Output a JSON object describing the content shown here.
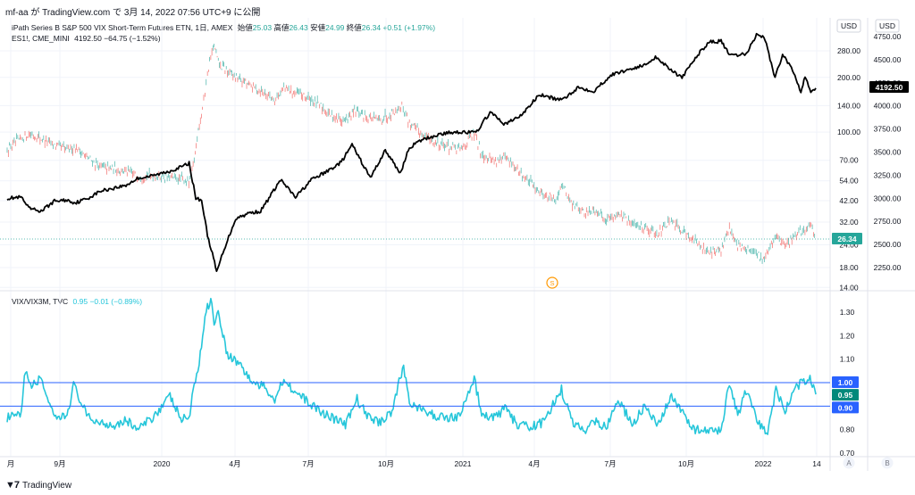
{
  "header": {
    "text": "mf-aa が TradingView.com で 3月 14, 2022 07:56 UTC+9 に公開"
  },
  "legend_top": {
    "title": "iPath Series B S&P 500 VIX Short-Term Futures ETN, 1日, AMEX",
    "open_label": "始値",
    "open": "25.03",
    "high_label": "高値",
    "high": "26.43",
    "low_label": "安値",
    "low": "24.99",
    "close_label": "終値",
    "close": "26.34",
    "change": "+0.51 (+1.97%)"
  },
  "legend_es": {
    "title": "ES1!, CME_MINI",
    "value": "4192.50",
    "change": "−64.75 (−1.52%)"
  },
  "legend_ratio": {
    "title": "VIX/VIX3M, TVC",
    "value": "0.95",
    "change": "−0.01 (−0.89%)"
  },
  "footer": {
    "brand": "TradingView"
  },
  "chart_data": {
    "type": "line",
    "x_ticks": [
      "月",
      "9月",
      "2020",
      "4月",
      "7月",
      "10月",
      "2021",
      "4月",
      "7月",
      "10月",
      "2022",
      "14"
    ],
    "currency_label": "USD",
    "left_axis": {
      "scale": "log",
      "ticks": [
        "280.00",
        "200.00",
        "140.00",
        "100.00",
        "70.00",
        "54.00",
        "42.00",
        "32.00",
        "24.00",
        "18.00",
        "14.00"
      ],
      "last_label": "26.34"
    },
    "right_axis": {
      "ticks": [
        "4750.00",
        "4500.00",
        "4250.00",
        "4000.00",
        "3750.00",
        "3500.00",
        "3250.00",
        "3000.00",
        "2750.00",
        "2500.00",
        "2250.00"
      ],
      "last_label": "4192.50"
    },
    "lower_axis": {
      "ticks": [
        "1.30",
        "1.20",
        "1.10",
        "1.00",
        "0.90",
        "0.80",
        "0.70"
      ],
      "level_labels": [
        "1.00",
        "0.95",
        "0.90"
      ],
      "levels": [
        1.0,
        0.9
      ],
      "last": 0.95
    },
    "vxx_series": [
      [
        "2019-07-15",
        80
      ],
      [
        "2019-08-01",
        92
      ],
      [
        "2019-08-10",
        98
      ],
      [
        "2019-08-25",
        92
      ],
      [
        "2019-09-10",
        85
      ],
      [
        "2019-09-25",
        80
      ],
      [
        "2019-10-05",
        83
      ],
      [
        "2019-10-20",
        72
      ],
      [
        "2019-11-05",
        64
      ],
      [
        "2019-11-20",
        63
      ],
      [
        "2019-12-05",
        61
      ],
      [
        "2019-12-20",
        57
      ],
      [
        "2020-01-05",
        58
      ],
      [
        "2020-01-25",
        56
      ],
      [
        "2020-02-10",
        55
      ],
      [
        "2020-02-20",
        53
      ],
      [
        "2020-02-25",
        70
      ],
      [
        "2020-03-01",
        105
      ],
      [
        "2020-03-06",
        135
      ],
      [
        "2020-03-12",
        210
      ],
      [
        "2020-03-16",
        260
      ],
      [
        "2020-03-20",
        300
      ],
      [
        "2020-03-25",
        240
      ],
      [
        "2020-04-05",
        215
      ],
      [
        "2020-04-20",
        195
      ],
      [
        "2020-05-05",
        178
      ],
      [
        "2020-05-20",
        165
      ],
      [
        "2020-06-01",
        152
      ],
      [
        "2020-06-12",
        175
      ],
      [
        "2020-06-25",
        165
      ],
      [
        "2020-07-10",
        155
      ],
      [
        "2020-07-25",
        140
      ],
      [
        "2020-08-10",
        122
      ],
      [
        "2020-08-25",
        115
      ],
      [
        "2020-09-05",
        130
      ],
      [
        "2020-09-20",
        122
      ],
      [
        "2020-10-05",
        116
      ],
      [
        "2020-10-20",
        128
      ],
      [
        "2020-11-01",
        140
      ],
      [
        "2020-11-10",
        112
      ],
      [
        "2020-11-25",
        98
      ],
      [
        "2020-12-10",
        88
      ],
      [
        "2020-12-25",
        84
      ],
      [
        "2021-01-10",
        80
      ],
      [
        "2021-01-27",
        98
      ],
      [
        "2021-02-05",
        76
      ],
      [
        "2021-02-20",
        70
      ],
      [
        "2021-03-05",
        72
      ],
      [
        "2021-03-20",
        62
      ],
      [
        "2021-04-05",
        52
      ],
      [
        "2021-04-20",
        46
      ],
      [
        "2021-05-05",
        42
      ],
      [
        "2021-05-12",
        52
      ],
      [
        "2021-05-25",
        40
      ],
      [
        "2021-06-10",
        36
      ],
      [
        "2021-06-20",
        38
      ],
      [
        "2021-07-05",
        33
      ],
      [
        "2021-07-20",
        36
      ],
      [
        "2021-08-05",
        31
      ],
      [
        "2021-08-20",
        30
      ],
      [
        "2021-09-05",
        28
      ],
      [
        "2021-09-20",
        32
      ],
      [
        "2021-10-05",
        29
      ],
      [
        "2021-10-20",
        25
      ],
      [
        "2021-11-05",
        22
      ],
      [
        "2021-11-20",
        22
      ],
      [
        "2021-11-30",
        30
      ],
      [
        "2021-12-10",
        24
      ],
      [
        "2021-12-25",
        22
      ],
      [
        "2022-01-10",
        20
      ],
      [
        "2022-01-25",
        27
      ],
      [
        "2022-02-05",
        24
      ],
      [
        "2022-02-20",
        27
      ],
      [
        "2022-03-01",
        29
      ],
      [
        "2022-03-07",
        31
      ],
      [
        "2022-03-14",
        26.34
      ]
    ],
    "es_series": [
      [
        "2019-07-15",
        3000
      ],
      [
        "2019-08-01",
        3010
      ],
      [
        "2019-08-10",
        2890
      ],
      [
        "2019-08-25",
        2860
      ],
      [
        "2019-09-10",
        2970
      ],
      [
        "2019-09-25",
        2980
      ],
      [
        "2019-10-05",
        2950
      ],
      [
        "2019-10-20",
        3000
      ],
      [
        "2019-11-05",
        3080
      ],
      [
        "2019-11-20",
        3110
      ],
      [
        "2019-12-05",
        3140
      ],
      [
        "2019-12-20",
        3220
      ],
      [
        "2020-01-05",
        3240
      ],
      [
        "2020-01-25",
        3290
      ],
      [
        "2020-02-10",
        3340
      ],
      [
        "2020-02-19",
        3380
      ],
      [
        "2020-02-27",
        3000
      ],
      [
        "2020-03-05",
        2980
      ],
      [
        "2020-03-12",
        2600
      ],
      [
        "2020-03-18",
        2400
      ],
      [
        "2020-03-23",
        2200
      ],
      [
        "2020-04-01",
        2450
      ],
      [
        "2020-04-15",
        2780
      ],
      [
        "2020-05-01",
        2840
      ],
      [
        "2020-05-15",
        2860
      ],
      [
        "2020-06-08",
        3200
      ],
      [
        "2020-06-26",
        3010
      ],
      [
        "2020-07-15",
        3200
      ],
      [
        "2020-08-01",
        3280
      ],
      [
        "2020-08-20",
        3390
      ],
      [
        "2020-09-02",
        3580
      ],
      [
        "2020-09-24",
        3220
      ],
      [
        "2020-10-12",
        3520
      ],
      [
        "2020-10-30",
        3270
      ],
      [
        "2020-11-10",
        3550
      ],
      [
        "2020-11-25",
        3630
      ],
      [
        "2020-12-15",
        3690
      ],
      [
        "2021-01-05",
        3720
      ],
      [
        "2021-01-29",
        3710
      ],
      [
        "2021-02-15",
        3930
      ],
      [
        "2021-03-05",
        3800
      ],
      [
        "2021-03-25",
        3900
      ],
      [
        "2021-04-15",
        4120
      ],
      [
        "2021-05-12",
        4060
      ],
      [
        "2021-06-01",
        4200
      ],
      [
        "2021-06-20",
        4160
      ],
      [
        "2021-07-10",
        4330
      ],
      [
        "2021-07-30",
        4390
      ],
      [
        "2021-08-20",
        4440
      ],
      [
        "2021-09-02",
        4530
      ],
      [
        "2021-10-04",
        4300
      ],
      [
        "2021-10-20",
        4520
      ],
      [
        "2021-11-05",
        4690
      ],
      [
        "2021-11-20",
        4700
      ],
      [
        "2021-12-01",
        4540
      ],
      [
        "2021-12-20",
        4560
      ],
      [
        "2022-01-03",
        4790
      ],
      [
        "2022-01-12",
        4720
      ],
      [
        "2022-01-24",
        4300
      ],
      [
        "2022-02-02",
        4560
      ],
      [
        "2022-02-14",
        4390
      ],
      [
        "2022-02-24",
        4150
      ],
      [
        "2022-03-01",
        4330
      ],
      [
        "2022-03-08",
        4160
      ],
      [
        "2022-03-14",
        4192.5
      ]
    ],
    "ratio_series": [
      [
        "2019-07-15",
        0.85
      ],
      [
        "2019-08-01",
        0.86
      ],
      [
        "2019-08-06",
        1.06
      ],
      [
        "2019-08-12",
        0.98
      ],
      [
        "2019-08-25",
        1.02
      ],
      [
        "2019-09-10",
        0.84
      ],
      [
        "2019-09-25",
        0.86
      ],
      [
        "2019-10-03",
        0.99
      ],
      [
        "2019-10-20",
        0.85
      ],
      [
        "2019-11-05",
        0.83
      ],
      [
        "2019-11-20",
        0.82
      ],
      [
        "2019-12-05",
        0.84
      ],
      [
        "2019-12-20",
        0.8
      ],
      [
        "2020-01-05",
        0.85
      ],
      [
        "2020-01-27",
        0.94
      ],
      [
        "2020-02-10",
        0.84
      ],
      [
        "2020-02-20",
        0.86
      ],
      [
        "2020-02-25",
        1.0
      ],
      [
        "2020-03-02",
        1.08
      ],
      [
        "2020-03-09",
        1.28
      ],
      [
        "2020-03-12",
        1.32
      ],
      [
        "2020-03-16",
        1.36
      ],
      [
        "2020-03-20",
        1.26
      ],
      [
        "2020-03-25",
        1.3
      ],
      [
        "2020-04-05",
        1.12
      ],
      [
        "2020-04-20",
        1.08
      ],
      [
        "2020-05-05",
        1.0
      ],
      [
        "2020-05-20",
        0.98
      ],
      [
        "2020-06-01",
        0.93
      ],
      [
        "2020-06-12",
        1.02
      ],
      [
        "2020-06-25",
        0.96
      ],
      [
        "2020-07-10",
        0.92
      ],
      [
        "2020-07-25",
        0.88
      ],
      [
        "2020-08-10",
        0.85
      ],
      [
        "2020-08-25",
        0.82
      ],
      [
        "2020-09-08",
        0.93
      ],
      [
        "2020-09-20",
        0.86
      ],
      [
        "2020-10-05",
        0.83
      ],
      [
        "2020-10-20",
        0.88
      ],
      [
        "2020-10-30",
        1.02
      ],
      [
        "2020-11-03",
        1.07
      ],
      [
        "2020-11-10",
        0.92
      ],
      [
        "2020-11-25",
        0.88
      ],
      [
        "2020-12-10",
        0.86
      ],
      [
        "2020-12-25",
        0.85
      ],
      [
        "2021-01-10",
        0.86
      ],
      [
        "2021-01-27",
        1.02
      ],
      [
        "2021-02-05",
        0.86
      ],
      [
        "2021-02-20",
        0.85
      ],
      [
        "2021-03-05",
        0.89
      ],
      [
        "2021-03-20",
        0.82
      ],
      [
        "2021-04-05",
        0.81
      ],
      [
        "2021-04-20",
        0.83
      ],
      [
        "2021-05-12",
        0.97
      ],
      [
        "2021-05-25",
        0.83
      ],
      [
        "2021-06-10",
        0.8
      ],
      [
        "2021-06-20",
        0.84
      ],
      [
        "2021-07-05",
        0.81
      ],
      [
        "2021-07-19",
        0.93
      ],
      [
        "2021-08-05",
        0.82
      ],
      [
        "2021-08-20",
        0.9
      ],
      [
        "2021-09-05",
        0.81
      ],
      [
        "2021-09-20",
        0.94
      ],
      [
        "2021-10-05",
        0.87
      ],
      [
        "2021-10-20",
        0.8
      ],
      [
        "2021-11-05",
        0.79
      ],
      [
        "2021-11-20",
        0.8
      ],
      [
        "2021-11-30",
        1.0
      ],
      [
        "2021-12-10",
        0.86
      ],
      [
        "2021-12-20",
        0.96
      ],
      [
        "2022-01-05",
        0.82
      ],
      [
        "2022-01-15",
        0.79
      ],
      [
        "2022-01-25",
        0.97
      ],
      [
        "2022-02-05",
        0.88
      ],
      [
        "2022-02-20",
        0.99
      ],
      [
        "2022-03-01",
        1.0
      ],
      [
        "2022-03-07",
        1.03
      ],
      [
        "2022-03-14",
        0.95
      ]
    ],
    "colors": {
      "vxx_up": "#26a69a",
      "vxx_down": "#ef5350",
      "es_line": "#000000",
      "ratio_line": "#26c6da",
      "level_line": "#2962ff",
      "last_vxx_bg": "#26a69a",
      "last_es_bg": "#000000",
      "level_bg": "#2962ff",
      "session_icon": "#ff9800"
    },
    "session_marker": "S",
    "pane_buttons": [
      "A",
      "B"
    ]
  }
}
